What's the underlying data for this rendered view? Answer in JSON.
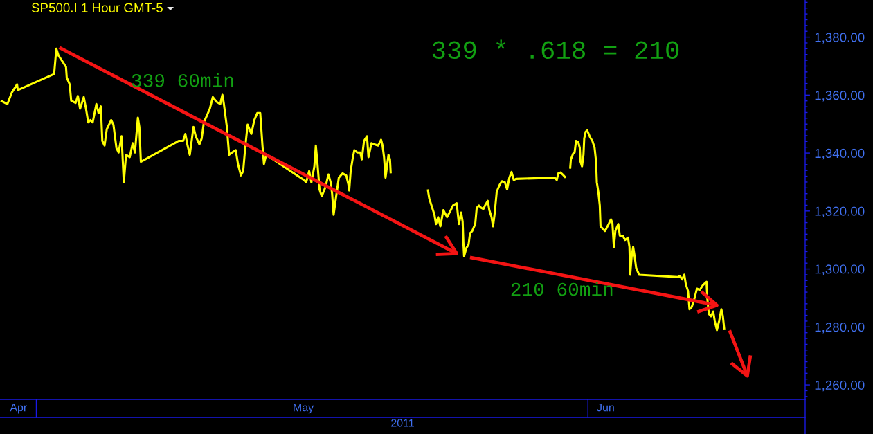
{
  "chart_data": {
    "type": "line",
    "title": "SP500.I 1 Hour GMT-5",
    "xlabel": "2011",
    "xlim": [
      "2011-04-28T23:00",
      "2011-06-13T05:00"
    ],
    "xticks": [
      {
        "value": "2011-04-30",
        "label": "Apr"
      },
      {
        "value": "2011-05-16",
        "label": "May"
      },
      {
        "value": "2011-06-02",
        "label": "Jun"
      }
    ],
    "ylim": [
      1255,
      1392.8
    ],
    "yticks": [
      {
        "value": 1256,
        "label": null
      },
      {
        "value": 1258,
        "label": null
      },
      {
        "value": 1260,
        "label": "1,260.00"
      },
      {
        "value": 1262,
        "label": null
      },
      {
        "value": 1264,
        "label": null
      },
      {
        "value": 1266,
        "label": null
      },
      {
        "value": 1268,
        "label": null
      },
      {
        "value": 1270,
        "label": null
      },
      {
        "value": 1272,
        "label": null
      },
      {
        "value": 1274,
        "label": null
      },
      {
        "value": 1276,
        "label": null
      },
      {
        "value": 1278,
        "label": null
      },
      {
        "value": 1280,
        "label": "1,280.00"
      },
      {
        "value": 1282,
        "label": null
      },
      {
        "value": 1284,
        "label": null
      },
      {
        "value": 1286,
        "label": null
      },
      {
        "value": 1288,
        "label": null
      },
      {
        "value": 1290,
        "label": null
      },
      {
        "value": 1292,
        "label": null
      },
      {
        "value": 1294,
        "label": null
      },
      {
        "value": 1296,
        "label": null
      },
      {
        "value": 1298,
        "label": null
      },
      {
        "value": 1300,
        "label": "1,300.00"
      },
      {
        "value": 1302,
        "label": null
      },
      {
        "value": 1304,
        "label": null
      },
      {
        "value": 1306,
        "label": null
      },
      {
        "value": 1308,
        "label": null
      },
      {
        "value": 1310,
        "label": null
      },
      {
        "value": 1312,
        "label": null
      },
      {
        "value": 1314,
        "label": null
      },
      {
        "value": 1316,
        "label": null
      },
      {
        "value": 1318,
        "label": null
      },
      {
        "value": 1320,
        "label": "1,320.00"
      },
      {
        "value": 1322,
        "label": null
      },
      {
        "value": 1324,
        "label": null
      },
      {
        "value": 1326,
        "label": null
      },
      {
        "value": 1328,
        "label": null
      },
      {
        "value": 1330,
        "label": null
      },
      {
        "value": 1332,
        "label": null
      },
      {
        "value": 1334,
        "label": null
      },
      {
        "value": 1336,
        "label": null
      },
      {
        "value": 1338,
        "label": null
      },
      {
        "value": 1340,
        "label": "1,340.00"
      },
      {
        "value": 1342,
        "label": null
      },
      {
        "value": 1344,
        "label": null
      },
      {
        "value": 1346,
        "label": null
      },
      {
        "value": 1348,
        "label": null
      },
      {
        "value": 1350,
        "label": null
      },
      {
        "value": 1352,
        "label": null
      },
      {
        "value": 1354,
        "label": null
      },
      {
        "value": 1356,
        "label": null
      },
      {
        "value": 1358,
        "label": null
      },
      {
        "value": 1360,
        "label": "1,360.00"
      },
      {
        "value": 1362,
        "label": null
      },
      {
        "value": 1364,
        "label": null
      },
      {
        "value": 1366,
        "label": null
      },
      {
        "value": 1368,
        "label": null
      },
      {
        "value": 1370,
        "label": null
      },
      {
        "value": 1372,
        "label": null
      },
      {
        "value": 1374,
        "label": null
      },
      {
        "value": 1376,
        "label": null
      },
      {
        "value": 1378,
        "label": null
      },
      {
        "value": 1380,
        "label": "1,380.00"
      },
      {
        "value": 1382,
        "label": null
      },
      {
        "value": 1384,
        "label": null
      },
      {
        "value": 1386,
        "label": null
      },
      {
        "value": 1388,
        "label": null
      },
      {
        "value": 1390,
        "label": null
      },
      {
        "value": 1392,
        "label": null
      }
    ],
    "series": [
      {
        "color": "#ffff00",
        "x": [
          "2011-04-29T00:00",
          "2011-04-29T09:00",
          "2011-04-29T15:00",
          "2011-04-29T22:00",
          "2011-04-29T23:00",
          "2011-05-02T00:00",
          "2011-05-02T03:00",
          "2011-05-02T06:00",
          "2011-05-02T12:00",
          "2011-05-02T16:00",
          "2011-05-02T17:00",
          "2011-05-02T21:00",
          "2011-05-02T23:00",
          "2011-05-03T05:00",
          "2011-05-03T08:00",
          "2011-05-03T11:00",
          "2011-05-03T16:00",
          "2011-05-03T19:00",
          "2011-05-03T22:00",
          "2011-05-04T01:00",
          "2011-05-04T04:00",
          "2011-05-04T09:00",
          "2011-05-04T12:00",
          "2011-05-04T15:00",
          "2011-05-04T17:00",
          "2011-05-04T20:00",
          "2011-05-04T23:00",
          "2011-05-05T05:00",
          "2011-05-05T08:00",
          "2011-05-05T12:00",
          "2011-05-05T15:00",
          "2011-05-05T19:00",
          "2011-05-05T22:00",
          "2011-05-06T01:00",
          "2011-05-06T06:00",
          "2011-05-06T10:00",
          "2011-05-06T13:00",
          "2011-05-06T17:00",
          "2011-05-06T19:00",
          "2011-05-06T21:00",
          "2011-05-09T00:00",
          "2011-05-09T06:00",
          "2011-05-09T09:00",
          "2011-05-09T12:00",
          "2011-05-09T15:00",
          "2011-05-09T20:00",
          "2011-05-09T23:00",
          "2011-05-10T04:00",
          "2011-05-10T07:00",
          "2011-05-10T10:00",
          "2011-05-10T14:00",
          "2011-05-10T18:00",
          "2011-05-10T22:00",
          "2011-05-11T03:00",
          "2011-05-11T08:00",
          "2011-05-11T11:00",
          "2011-05-11T13:00",
          "2011-05-11T17:00",
          "2011-05-11T20:00",
          "2011-05-12T00:00",
          "2011-05-12T05:00",
          "2011-05-12T08:00",
          "2011-05-12T12:00",
          "2011-05-12T15:00",
          "2011-05-12T18:00",
          "2011-05-12T21:00",
          "2011-05-13T02:00",
          "2011-05-13T06:00",
          "2011-05-13T10:00",
          "2011-05-13T14:00",
          "2011-05-13T17:00",
          "2011-05-13T19:00",
          "2011-05-13T22:00",
          "2011-05-16T01:00",
          "2011-05-16T04:00",
          "2011-05-16T08:00",
          "2011-05-16T11:00",
          "2011-05-16T15:00",
          "2011-05-16T17:00",
          "2011-05-16T19:00",
          "2011-05-16T22:00",
          "2011-05-17T01:00",
          "2011-05-17T06:00",
          "2011-05-17T10:00",
          "2011-05-17T13:00",
          "2011-05-17T15:00",
          "2011-05-17T17:00",
          "2011-05-17T20:00",
          "2011-05-18T00:00",
          "2011-05-18T05:00",
          "2011-05-18T10:00",
          "2011-05-18T13:00",
          "2011-05-18T14:00",
          "2011-05-18T16:00",
          "2011-05-18T19:00",
          "2011-05-18T21:00",
          "2011-05-19T01:00",
          "2011-05-19T05:00",
          "2011-05-19T07:00",
          "2011-05-19T10:00",
          "2011-05-19T14:00",
          "2011-05-19T16:00",
          "2011-05-19T18:00",
          "2011-05-19T20:00",
          "2011-05-20T00:00",
          "2011-05-20T05:00",
          "2011-05-20T09:00",
          "2011-05-20T11:00",
          "2011-05-20T13:00",
          "2011-05-20T15:00",
          "2011-05-20T19:00",
          "2011-05-20T21:00",
          "2011-05-20T22:00",
          "2011-05-21T12:00",
          "2011-05-23T00:00",
          "2011-05-23T02:00",
          "2011-05-23T04:00",
          "2011-05-23T09:00",
          "2011-05-23T11:00",
          "2011-05-23T14:00",
          "2011-05-23T17:00",
          "2011-05-23T21:00",
          "2011-05-24T02:00",
          "2011-05-24T07:00",
          "2011-05-24T10:00",
          "2011-05-24T15:00",
          "2011-05-24T18:00",
          "2011-05-24T21:00",
          "2011-05-24T23:00",
          "2011-05-25T00:00",
          "2011-05-25T01:00",
          "2011-05-25T04:00",
          "2011-05-25T07:00",
          "2011-05-25T09:00",
          "2011-05-25T12:00",
          "2011-05-25T16:00",
          "2011-05-25T18:00",
          "2011-05-25T21:00",
          "2011-05-26T00:00",
          "2011-05-26T03:00",
          "2011-05-26T06:00",
          "2011-05-26T09:00",
          "2011-05-26T11:00",
          "2011-05-26T14:00",
          "2011-05-26T16:00",
          "2011-05-26T18:00",
          "2011-05-26T21:00",
          "2011-05-27T01:00",
          "2011-05-27T04:00",
          "2011-05-27T08:00",
          "2011-05-27T11:00",
          "2011-05-27T14:00",
          "2011-05-27T17:00",
          "2011-05-27T20:00",
          "2011-05-27T23:00",
          "2011-05-30T03:00",
          "2011-05-30T06:00",
          "2011-05-30T08:00",
          "2011-05-30T11:00",
          "2011-05-30T14:00",
          "2011-05-30T18:00",
          "2011-05-30T21:00",
          "2011-05-31T00:00",
          "2011-05-31T01:00",
          "2011-05-31T04:00",
          "2011-05-31T06:00",
          "2011-05-31T08:00",
          "2011-05-31T11:00",
          "2011-05-31T13:00",
          "2011-05-31T14:00",
          "2011-05-31T16:00",
          "2011-05-31T18:00",
          "2011-05-31T19:00",
          "2011-05-31T21:00",
          "2011-05-31T23:00",
          "2011-06-01T03:00",
          "2011-06-01T06:00",
          "2011-06-01T09:00",
          "2011-06-01T11:00",
          "2011-06-01T12:00",
          "2011-06-01T14:00",
          "2011-06-01T16:00",
          "2011-06-01T17:00",
          "2011-06-01T20:00",
          "2011-06-01T23:00",
          "2011-06-02T04:00",
          "2011-06-02T07:00",
          "2011-06-02T09:00",
          "2011-06-02T11:00",
          "2011-06-02T13:00",
          "2011-06-02T17:00",
          "2011-06-02T19:00",
          "2011-06-02T23:00",
          "2011-06-03T02:00",
          "2011-06-03T06:00",
          "2011-06-03T08:00",
          "2011-06-03T09:00",
          "2011-06-03T11:00",
          "2011-06-03T13:00",
          "2011-06-03T15:00",
          "2011-06-03T17:00",
          "2011-06-03T21:00",
          "2011-06-06T01:00",
          "2011-06-06T04:00",
          "2011-06-06T07:00",
          "2011-06-06T10:00",
          "2011-06-06T12:00",
          "2011-06-06T15:00",
          "2011-06-06T17:00",
          "2011-06-06T20:00",
          "2011-06-06T23:00",
          "2011-06-07T03:00",
          "2011-06-07T07:00",
          "2011-06-07T11:00",
          "2011-06-07T16:00",
          "2011-06-07T17:00",
          "2011-06-07T19:00",
          "2011-06-07T22:00",
          "2011-06-08T01:00",
          "2011-06-08T03:00",
          "2011-06-08T06:00",
          "2011-06-08T09:00",
          "2011-06-08T12:00",
          "2011-06-08T14:00",
          "2011-06-08T16:00"
        ],
        "values": [
          1358.1,
          1356.9,
          1360.9,
          1363.7,
          1361.7,
          1367.3,
          1376.0,
          1373.6,
          1371.3,
          1369.7,
          1366.1,
          1363.7,
          1358.1,
          1357.3,
          1359.7,
          1355.3,
          1359.3,
          1355.3,
          1350.6,
          1351.4,
          1350.6,
          1356.9,
          1353.8,
          1356.1,
          1344.2,
          1342.6,
          1348.2,
          1351.4,
          1349.8,
          1341.8,
          1340.2,
          1345.8,
          1329.9,
          1339.4,
          1338.6,
          1343.4,
          1340.2,
          1352.2,
          1349.0,
          1337.0,
          1344.2,
          1344.2,
          1346.6,
          1342.6,
          1339.4,
          1349.0,
          1345.8,
          1343.0,
          1345.0,
          1350.6,
          1352.9,
          1355.3,
          1359.3,
          1357.7,
          1356.9,
          1360.1,
          1356.9,
          1349.0,
          1339.4,
          1340.2,
          1341.0,
          1336.2,
          1332.3,
          1333.8,
          1342.6,
          1349.8,
          1346.6,
          1351.4,
          1353.8,
          1353.8,
          1342.6,
          1336.2,
          1339.4,
          1330.7,
          1329.9,
          1333.8,
          1329.9,
          1335.4,
          1342.6,
          1337.0,
          1327.4,
          1325.1,
          1328.3,
          1332.6,
          1329.9,
          1325.9,
          1318.7,
          1324.3,
          1331.5,
          1333.0,
          1332.3,
          1329.1,
          1327.1,
          1333.8,
          1338.6,
          1341.0,
          1340.2,
          1340.2,
          1337.8,
          1344.2,
          1345.8,
          1338.6,
          1341.0,
          1343.4,
          1343.0,
          1342.6,
          1344.6,
          1342.6,
          1338.6,
          1331.5,
          1339.4,
          1337.8,
          1333.0,
          null,
          1327.5,
          1324.3,
          1322.7,
          1318.7,
          1315.5,
          1317.9,
          1314.7,
          1320.3,
          1317.9,
          1320.3,
          1321.9,
          1322.7,
          1315.5,
          1319.5,
          1316.3,
          1309.2,
          1304.4,
          1307.2,
          1308.4,
          1312.3,
          1313.1,
          1315.5,
          1321.1,
          1321.9,
          1321.1,
          1320.7,
          1322.3,
          1323.5,
          1320.3,
          1317.9,
          1314.7,
          1318.7,
          1326.7,
          1329.1,
          1330.3,
          1329.9,
          1327.5,
          1331.5,
          1333.5,
          1330.7,
          1331.1,
          1331.5,
          1330.7,
          1333.0,
          1333.3,
          1332.6,
          1331.5,
          null,
          1334.6,
          1337.8,
          1339.8,
          1340.2,
          1344.2,
          1343.8,
          1341.8,
          1337.0,
          1335.4,
          1339.4,
          1345.0,
          1347.4,
          1347.8,
          1345.4,
          1344.2,
          1341.8,
          1337.0,
          1329.9,
          1326.7,
          1321.9,
          1314.7,
          1313.9,
          1313.1,
          1315.5,
          1317.1,
          1315.9,
          1307.6,
          1313.1,
          1315.5,
          1311.5,
          1311.5,
          1310.0,
          1310.8,
          1307.6,
          1298.0,
          1304.4,
          1307.6,
          1304.4,
          1300.4,
          1298.0,
          1297.2,
          1297.6,
          1296.4,
          1298.0,
          1294.8,
          1292.4,
          1286.1,
          1286.9,
          1289.2,
          1293.2,
          1292.8,
          1294.4,
          1295.6,
          1290.1,
          1284.5,
          1283.7,
          1285.3,
          1282.1,
          1278.9,
          1282.1,
          1286.1,
          1283.7,
          1278.9
        ]
      },
      {
        "type": "line",
        "color": "#f41414",
        "x": [
          "2011-05-02T07:00",
          "2011-05-24T15:00"
        ],
        "values": [
          1376.4,
          1305.3
        ]
      },
      {
        "type": "line",
        "color": "#f41414",
        "x": [
          "2011-05-25T09:00",
          "2011-06-08T06:00"
        ],
        "values": [
          1304.0,
          1287.5
        ]
      },
      {
        "type": "line",
        "color": "#f41414",
        "x": [
          "2011-06-08T23:00",
          "2011-06-09T23:00"
        ],
        "values": [
          1278.8,
          1263.1
        ]
      }
    ],
    "annotations": [
      "339 * .618 = 210",
      "339 60min",
      "210 60min"
    ]
  }
}
